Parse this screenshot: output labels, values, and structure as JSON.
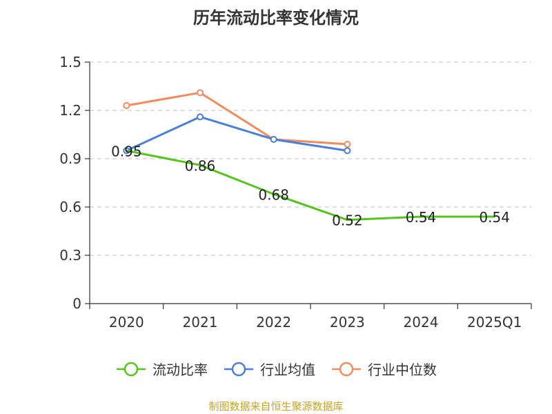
{
  "title": "历年流动比率变化情况",
  "source": "制图数据来自恒生聚源数据库",
  "chart_data": {
    "type": "line",
    "categories": [
      "2020",
      "2021",
      "2022",
      "2023",
      "2024",
      "2025Q1"
    ],
    "ylim": [
      0,
      1.5
    ],
    "yticks": [
      0,
      0.3,
      0.6,
      0.9,
      1.2,
      1.5
    ],
    "ytick_labels": [
      "0",
      "0.3",
      "0.6",
      "0.9",
      "1.2",
      "1.5"
    ],
    "grid": true,
    "legend_position": "bottom",
    "series": [
      {
        "name": "流动比率",
        "color": "#52c41a",
        "values": [
          0.95,
          0.86,
          0.68,
          0.52,
          0.54,
          0.54
        ],
        "labels": [
          "0.95",
          "0.86",
          "0.68",
          "0.52",
          "0.54",
          "0.54"
        ],
        "show_markers": false
      },
      {
        "name": "行业均值",
        "color": "#4a7fd9",
        "values": [
          0.95,
          1.16,
          1.02,
          0.95,
          null,
          null
        ],
        "show_markers": true
      },
      {
        "name": "行业中位数",
        "color": "#f28c5c",
        "values": [
          1.23,
          1.31,
          1.02,
          0.99,
          null,
          null
        ],
        "show_markers": true
      }
    ]
  }
}
